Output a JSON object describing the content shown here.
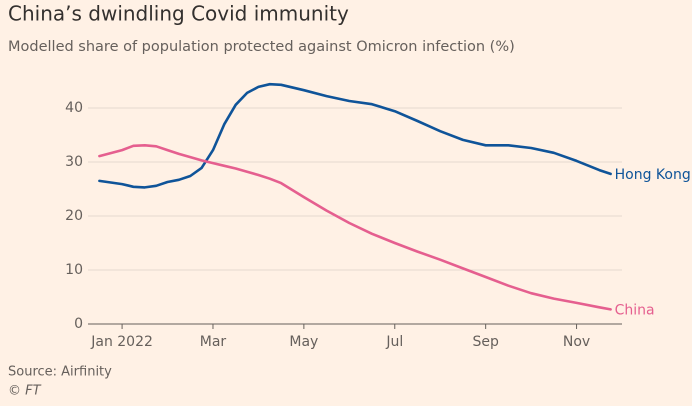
{
  "chart_data": {
    "type": "line",
    "title": "China’s dwindling Covid immunity",
    "subtitle": "Modelled share of population protected against Omicron infection (%)",
    "source": "Source: Airfinity",
    "credit": "© FT",
    "x": [
      -0.5,
      0,
      0.25,
      0.5,
      0.75,
      1,
      1.25,
      1.5,
      1.75,
      2,
      2.25,
      2.5,
      2.75,
      3,
      3.25,
      3.5,
      4,
      4.5,
      5,
      5.5,
      6,
      6.5,
      7,
      7.5,
      8,
      8.5,
      9,
      9.5,
      10,
      10.5,
      10.75
    ],
    "series": [
      {
        "name": "Hong Kong",
        "color": "#0f5499",
        "values": [
          26.5,
          25.9,
          25.4,
          25.3,
          25.6,
          26.3,
          26.7,
          27.4,
          28.9,
          32.2,
          37.0,
          40.6,
          42.8,
          43.9,
          44.4,
          44.3,
          43.3,
          42.2,
          41.3,
          40.7,
          39.4,
          37.6,
          35.7,
          34.1,
          33.1,
          33.1,
          32.6,
          31.7,
          30.2,
          28.5,
          27.8
        ]
      },
      {
        "name": "China",
        "color": "#e55f8f",
        "values": [
          31.1,
          32.2,
          33.0,
          33.1,
          32.9,
          32.2,
          31.5,
          30.9,
          30.3,
          29.8,
          29.3,
          28.8,
          28.2,
          27.6,
          26.9,
          26.1,
          23.5,
          21.0,
          18.7,
          16.7,
          15.0,
          13.4,
          11.9,
          10.3,
          8.7,
          7.1,
          5.7,
          4.7,
          3.9,
          3.1,
          2.7
        ]
      }
    ],
    "xlim": [
      -0.75,
      11
    ],
    "xticks": [
      {
        "value": 0,
        "label": "Jan 2022"
      },
      {
        "value": 2,
        "label": "Mar"
      },
      {
        "value": 4,
        "label": "May"
      },
      {
        "value": 6,
        "label": "Jul"
      },
      {
        "value": 8,
        "label": "Sep"
      },
      {
        "value": 10,
        "label": "Nov"
      }
    ],
    "ylim": [
      0,
      45
    ],
    "yticks": [
      0,
      10,
      20,
      30,
      40
    ],
    "grid": true
  }
}
